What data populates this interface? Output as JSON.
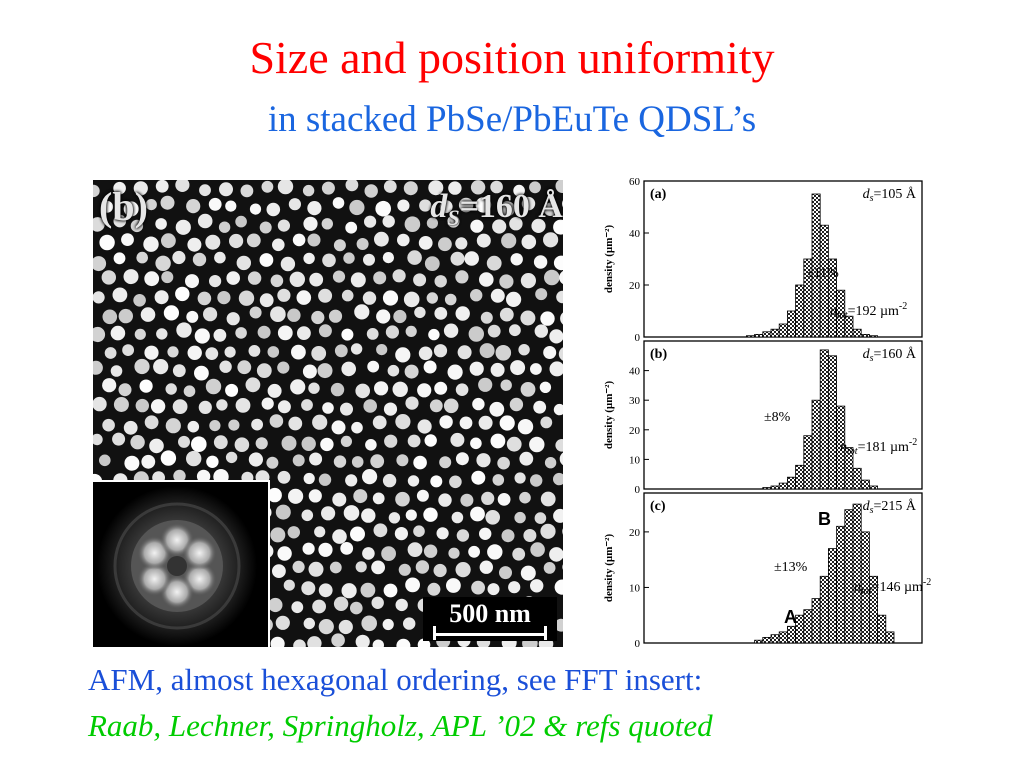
{
  "slide": {
    "title": "Size and position uniformity",
    "subtitle": "in stacked PbSe/PbEuTe QDSL’s",
    "caption_line1": "AFM, almost hexagonal ordering, see FFT insert:",
    "caption_line2": "Raab, Lechner, Springholz, APL ’02 & refs quoted"
  },
  "afm_image": {
    "panel_label": "(b)",
    "ds_symbol": "d",
    "ds_sub": "S",
    "ds_value": "=160 Å",
    "scale_bar": "500 nm"
  },
  "chart_data": [
    {
      "type": "bar",
      "panel": "(a)",
      "ylabel": "density (µm⁻²)",
      "ylim": [
        0,
        60
      ],
      "yticks": [
        0,
        20,
        40,
        60
      ],
      "x": [
        -10,
        -9,
        -8,
        -7,
        -6,
        -5,
        -4,
        -3,
        -2,
        -1,
        0,
        1,
        2,
        3,
        4,
        5,
        6,
        7,
        8,
        9,
        10
      ],
      "values": [
        0,
        0,
        0.5,
        1,
        2,
        3,
        5,
        10,
        20,
        30,
        55,
        43,
        30,
        18,
        8,
        3,
        1,
        0.5,
        0,
        0,
        0
      ],
      "ds_label": "d",
      "ds_sub": "s",
      "ds_value": "=105 Å",
      "pm_label": "±11%",
      "n_label": "n",
      "n_sub": "tot",
      "n_value": "=192 µm",
      "n_exp": "-2"
    },
    {
      "type": "bar",
      "panel": "(b)",
      "ylabel": "density (µm⁻²)",
      "ylim": [
        0,
        50
      ],
      "yticks": [
        0,
        10,
        20,
        30,
        40
      ],
      "x": [
        -10,
        -9,
        -8,
        -7,
        -6,
        -5,
        -4,
        -3,
        -2,
        -1,
        0,
        1,
        2,
        3,
        4,
        5,
        6,
        7,
        8,
        9,
        10
      ],
      "values": [
        0,
        0,
        0,
        0,
        0.5,
        1,
        2,
        4,
        8,
        18,
        30,
        47,
        45,
        28,
        14,
        7,
        3,
        1,
        0,
        0,
        0
      ],
      "ds_label": "d",
      "ds_sub": "s",
      "ds_value": "=160 Å",
      "pm_label": "±8%",
      "n_label": "n",
      "n_sub": "tot",
      "n_value": "=181 µm",
      "n_exp": "-2"
    },
    {
      "type": "bar",
      "panel": "(c)",
      "ylabel": "density (µm⁻²)",
      "ylim": [
        0,
        27
      ],
      "yticks": [
        0,
        10,
        20
      ],
      "x": [
        -10,
        -9,
        -8,
        -7,
        -6,
        -5,
        -4,
        -3,
        -2,
        -1,
        0,
        1,
        2,
        3,
        4,
        5,
        6,
        7,
        8,
        9,
        10
      ],
      "values": [
        0,
        0,
        0,
        0.5,
        1,
        1.5,
        2,
        3,
        5,
        6,
        8,
        12,
        17,
        21,
        24,
        25,
        20,
        12,
        5,
        2,
        0
      ],
      "ds_label": "d",
      "ds_sub": "s",
      "ds_value": "=215 Å",
      "pm_label": "±13%",
      "n_label": "n",
      "n_sub": "tot",
      "n_value": "=146 µm",
      "n_exp": "-2",
      "peak_a": "A",
      "peak_b": "B"
    }
  ]
}
